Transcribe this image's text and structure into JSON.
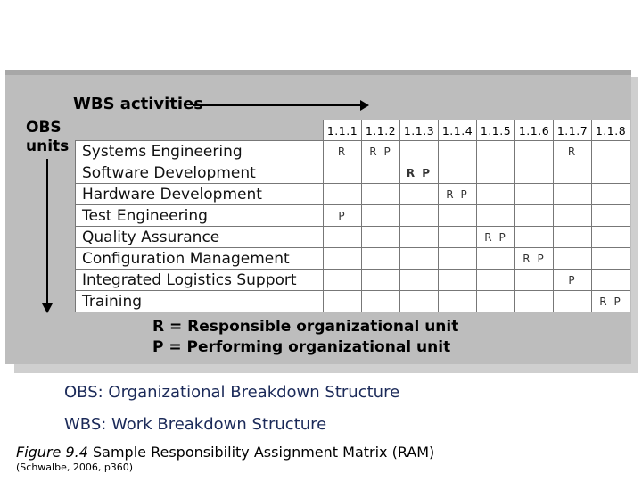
{
  "diagram": {
    "wbs_title": "WBS activities",
    "obs_title_line1": "OBS",
    "obs_title_line2": "units",
    "activities": [
      "1.1.1",
      "1.1.2",
      "1.1.3",
      "1.1.4",
      "1.1.5",
      "1.1.6",
      "1.1.7",
      "1.1.8"
    ],
    "rows": [
      {
        "unit": "Systems Engineering",
        "cells": [
          "R",
          "R P",
          "",
          "",
          "",
          "",
          "R",
          ""
        ]
      },
      {
        "unit": "Software Development",
        "cells": [
          "",
          "",
          "R P",
          "",
          "",
          "",
          "",
          ""
        ]
      },
      {
        "unit": "Hardware Development",
        "cells": [
          "",
          "",
          "",
          "R P",
          "",
          "",
          "",
          ""
        ]
      },
      {
        "unit": "Test Engineering",
        "cells": [
          "P",
          "",
          "",
          "",
          "",
          "",
          "",
          ""
        ]
      },
      {
        "unit": "Quality Assurance",
        "cells": [
          "",
          "",
          "",
          "",
          "R P",
          "",
          "",
          ""
        ]
      },
      {
        "unit": "Configuration Management",
        "cells": [
          "",
          "",
          "",
          "",
          "",
          "R P",
          "",
          ""
        ]
      },
      {
        "unit": "Integrated Logistics Support",
        "cells": [
          "",
          "",
          "",
          "",
          "",
          "",
          "P",
          ""
        ]
      },
      {
        "unit": "Training",
        "cells": [
          "",
          "",
          "",
          "",
          "",
          "",
          "",
          "R P"
        ]
      }
    ],
    "legend_r": "R = Responsible organizational unit",
    "legend_p": "P = Performing organizational unit"
  },
  "captions": {
    "obs": "OBS: Organizational Breakdown Structure",
    "wbs": "WBS: Work Breakdown Structure",
    "figure_label": "Figure 9.4",
    "figure_text": "Sample Responsibility Assignment Matrix (RAM)",
    "citation": "(Schwalbe, 2006, p360)"
  },
  "colors": {
    "panel": "#bdbdbd",
    "caption_text": "#1b2a59"
  }
}
